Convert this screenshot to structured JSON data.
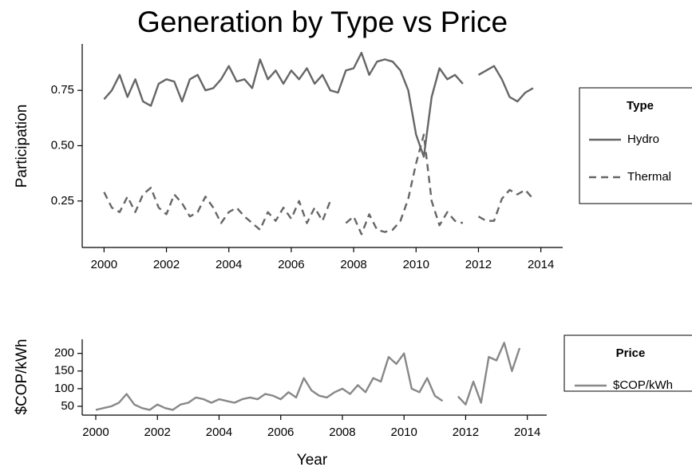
{
  "chart_data": [
    {
      "type": "line",
      "title": "Generation by Type vs Price",
      "y_label": "Participation",
      "legend_title": "Type",
      "x": [
        2000,
        2000.25,
        2000.5,
        2000.75,
        2001,
        2001.25,
        2001.5,
        2001.75,
        2002,
        2002.25,
        2002.5,
        2002.75,
        2003,
        2003.25,
        2003.5,
        2003.75,
        2004,
        2004.25,
        2004.5,
        2004.75,
        2005,
        2005.25,
        2005.5,
        2005.75,
        2006,
        2006.25,
        2006.5,
        2006.75,
        2007,
        2007.25,
        2007.5,
        2007.75,
        2008,
        2008.25,
        2008.5,
        2008.75,
        2009,
        2009.25,
        2009.5,
        2009.75,
        2010,
        2010.25,
        2010.5,
        2010.75,
        2011,
        2011.25,
        2011.5,
        2011.75,
        2012,
        2012.25,
        2012.5,
        2012.75,
        2013,
        2013.25,
        2013.5,
        2013.75
      ],
      "series": [
        {
          "name": "Hydro",
          "color": "#666666",
          "line_style": "solid",
          "values": [
            0.71,
            0.75,
            0.82,
            0.72,
            0.8,
            0.7,
            0.68,
            0.78,
            0.8,
            0.79,
            0.7,
            0.8,
            0.82,
            0.75,
            0.76,
            0.8,
            0.86,
            0.79,
            0.8,
            0.76,
            0.89,
            0.8,
            0.84,
            0.78,
            0.84,
            0.8,
            0.85,
            0.78,
            0.82,
            0.75,
            0.74,
            0.84,
            0.85,
            0.92,
            0.82,
            0.88,
            0.89,
            0.88,
            0.84,
            0.75,
            0.55,
            0.45,
            0.72,
            0.85,
            0.8,
            0.82,
            0.78,
            null,
            0.82,
            0.84,
            0.86,
            0.8,
            0.72,
            0.7,
            0.74,
            0.76
          ]
        },
        {
          "name": "Thermal",
          "color": "#666666",
          "line_style": "dashed",
          "values": [
            0.29,
            0.22,
            0.2,
            0.27,
            0.2,
            0.28,
            0.31,
            0.22,
            0.19,
            0.28,
            0.24,
            0.18,
            0.2,
            0.27,
            0.22,
            0.15,
            0.2,
            0.22,
            0.18,
            0.15,
            0.12,
            0.2,
            0.16,
            0.22,
            0.17,
            0.25,
            0.15,
            0.22,
            0.16,
            0.25,
            null,
            0.15,
            0.18,
            0.1,
            0.19,
            0.12,
            0.11,
            0.12,
            0.16,
            0.26,
            0.42,
            0.55,
            0.25,
            0.14,
            0.2,
            0.16,
            0.15,
            null,
            0.18,
            0.16,
            0.16,
            0.26,
            0.3,
            0.28,
            0.3,
            0.26
          ]
        }
      ],
      "xlim": [
        1999.3,
        2014.7
      ],
      "xticks": [
        2000,
        2002,
        2004,
        2006,
        2008,
        2010,
        2012,
        2014
      ],
      "ylim": [
        0.04,
        0.96
      ],
      "yticks": [
        0.25,
        {
          "value": 0.5,
          "label": "0.50"
        },
        0.75
      ]
    },
    {
      "type": "line",
      "y_label": "$COP/kWh",
      "x_label": "Year",
      "legend_title": "Price",
      "x": [
        2000,
        2000.25,
        2000.5,
        2000.75,
        2001,
        2001.25,
        2001.5,
        2001.75,
        2002,
        2002.25,
        2002.5,
        2002.75,
        2003,
        2003.25,
        2003.5,
        2003.75,
        2004,
        2004.25,
        2004.5,
        2004.75,
        2005,
        2005.25,
        2005.5,
        2005.75,
        2006,
        2006.25,
        2006.5,
        2006.75,
        2007,
        2007.25,
        2007.5,
        2007.75,
        2008,
        2008.25,
        2008.5,
        2008.75,
        2009,
        2009.25,
        2009.5,
        2009.75,
        2010,
        2010.25,
        2010.5,
        2010.75,
        2011,
        2011.25,
        2011.5,
        2011.75,
        2012,
        2012.25,
        2012.5,
        2012.75,
        2013,
        2013.25,
        2013.5,
        2013.75
      ],
      "series": [
        {
          "name": "$COP/kWh",
          "color": "#888888",
          "line_style": "solid",
          "values": [
            40,
            45,
            50,
            60,
            85,
            55,
            45,
            40,
            55,
            45,
            40,
            55,
            60,
            75,
            70,
            60,
            70,
            65,
            60,
            70,
            75,
            70,
            85,
            80,
            70,
            90,
            75,
            130,
            95,
            80,
            75,
            90,
            100,
            85,
            110,
            90,
            130,
            120,
            190,
            170,
            200,
            100,
            90,
            130,
            80,
            65,
            null,
            78,
            55,
            120,
            60,
            190,
            180,
            230,
            150,
            215
          ]
        }
      ],
      "xlim": [
        1999.56,
        2014.63
      ],
      "xticks": [
        2000,
        2002,
        2004,
        2006,
        2008,
        2010,
        2012,
        2014
      ],
      "ylim": [
        25,
        240
      ],
      "yticks": [
        50,
        100,
        150,
        200
      ]
    }
  ]
}
